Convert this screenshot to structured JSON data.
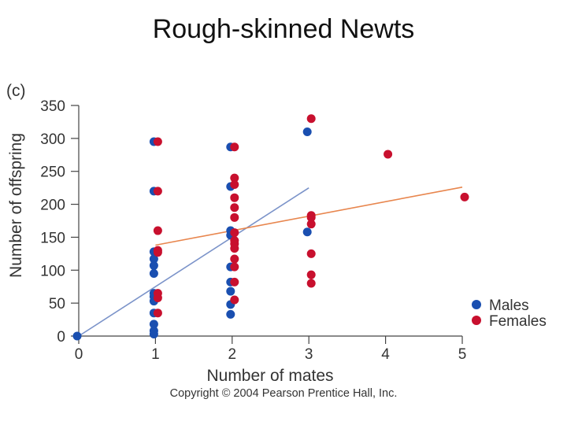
{
  "page": {
    "title": "Rough-skinned Newts",
    "panel_label": "(c)",
    "copyright": "Copyright © 2004 Pearson Prentice Hall, Inc."
  },
  "chart_data": {
    "type": "scatter",
    "xlabel": "Number of mates",
    "ylabel": "Number of offspring",
    "xlim": [
      0,
      5
    ],
    "ylim": [
      0,
      350
    ],
    "xticks": [
      0,
      1,
      2,
      3,
      4,
      5
    ],
    "yticks": [
      0,
      50,
      100,
      150,
      200,
      250,
      300,
      350
    ],
    "grid": false,
    "legend_position": "bottom-right",
    "series": [
      {
        "name": "Males",
        "color": "#1a4fb0",
        "points": [
          [
            0,
            0
          ],
          [
            1,
            295
          ],
          [
            1,
            220
          ],
          [
            1,
            128
          ],
          [
            1,
            117
          ],
          [
            1,
            107
          ],
          [
            1,
            95
          ],
          [
            1,
            65
          ],
          [
            1,
            60
          ],
          [
            1,
            53
          ],
          [
            1,
            35
          ],
          [
            1,
            18
          ],
          [
            1,
            8
          ],
          [
            1,
            3
          ],
          [
            2,
            287
          ],
          [
            2,
            227
          ],
          [
            2,
            160
          ],
          [
            2,
            153
          ],
          [
            2,
            105
          ],
          [
            2,
            82
          ],
          [
            2,
            68
          ],
          [
            2,
            48
          ],
          [
            2,
            33
          ],
          [
            3,
            310
          ],
          [
            3,
            158
          ]
        ],
        "fit_line": [
          [
            0,
            0
          ],
          [
            3,
            225
          ]
        ]
      },
      {
        "name": "Females",
        "color": "#c8102e",
        "points": [
          [
            1,
            295
          ],
          [
            1,
            220
          ],
          [
            1,
            160
          ],
          [
            1,
            130
          ],
          [
            1,
            127
          ],
          [
            1,
            65
          ],
          [
            1,
            58
          ],
          [
            1,
            35
          ],
          [
            2,
            287
          ],
          [
            2,
            240
          ],
          [
            2,
            230
          ],
          [
            2,
            210
          ],
          [
            2,
            195
          ],
          [
            2,
            180
          ],
          [
            2,
            157
          ],
          [
            2,
            145
          ],
          [
            2,
            140
          ],
          [
            2,
            133
          ],
          [
            2,
            117
          ],
          [
            2,
            105
          ],
          [
            2,
            82
          ],
          [
            2,
            55
          ],
          [
            3,
            330
          ],
          [
            3,
            183
          ],
          [
            3,
            180
          ],
          [
            3,
            170
          ],
          [
            3,
            125
          ],
          [
            3,
            93
          ],
          [
            3,
            80
          ],
          [
            4,
            276
          ],
          [
            5,
            211
          ]
        ],
        "fit_line": [
          [
            1,
            138
          ],
          [
            5,
            226
          ]
        ]
      }
    ],
    "fit_line_colors": {
      "Males": "#7b93c9",
      "Females": "#e8864e"
    }
  }
}
